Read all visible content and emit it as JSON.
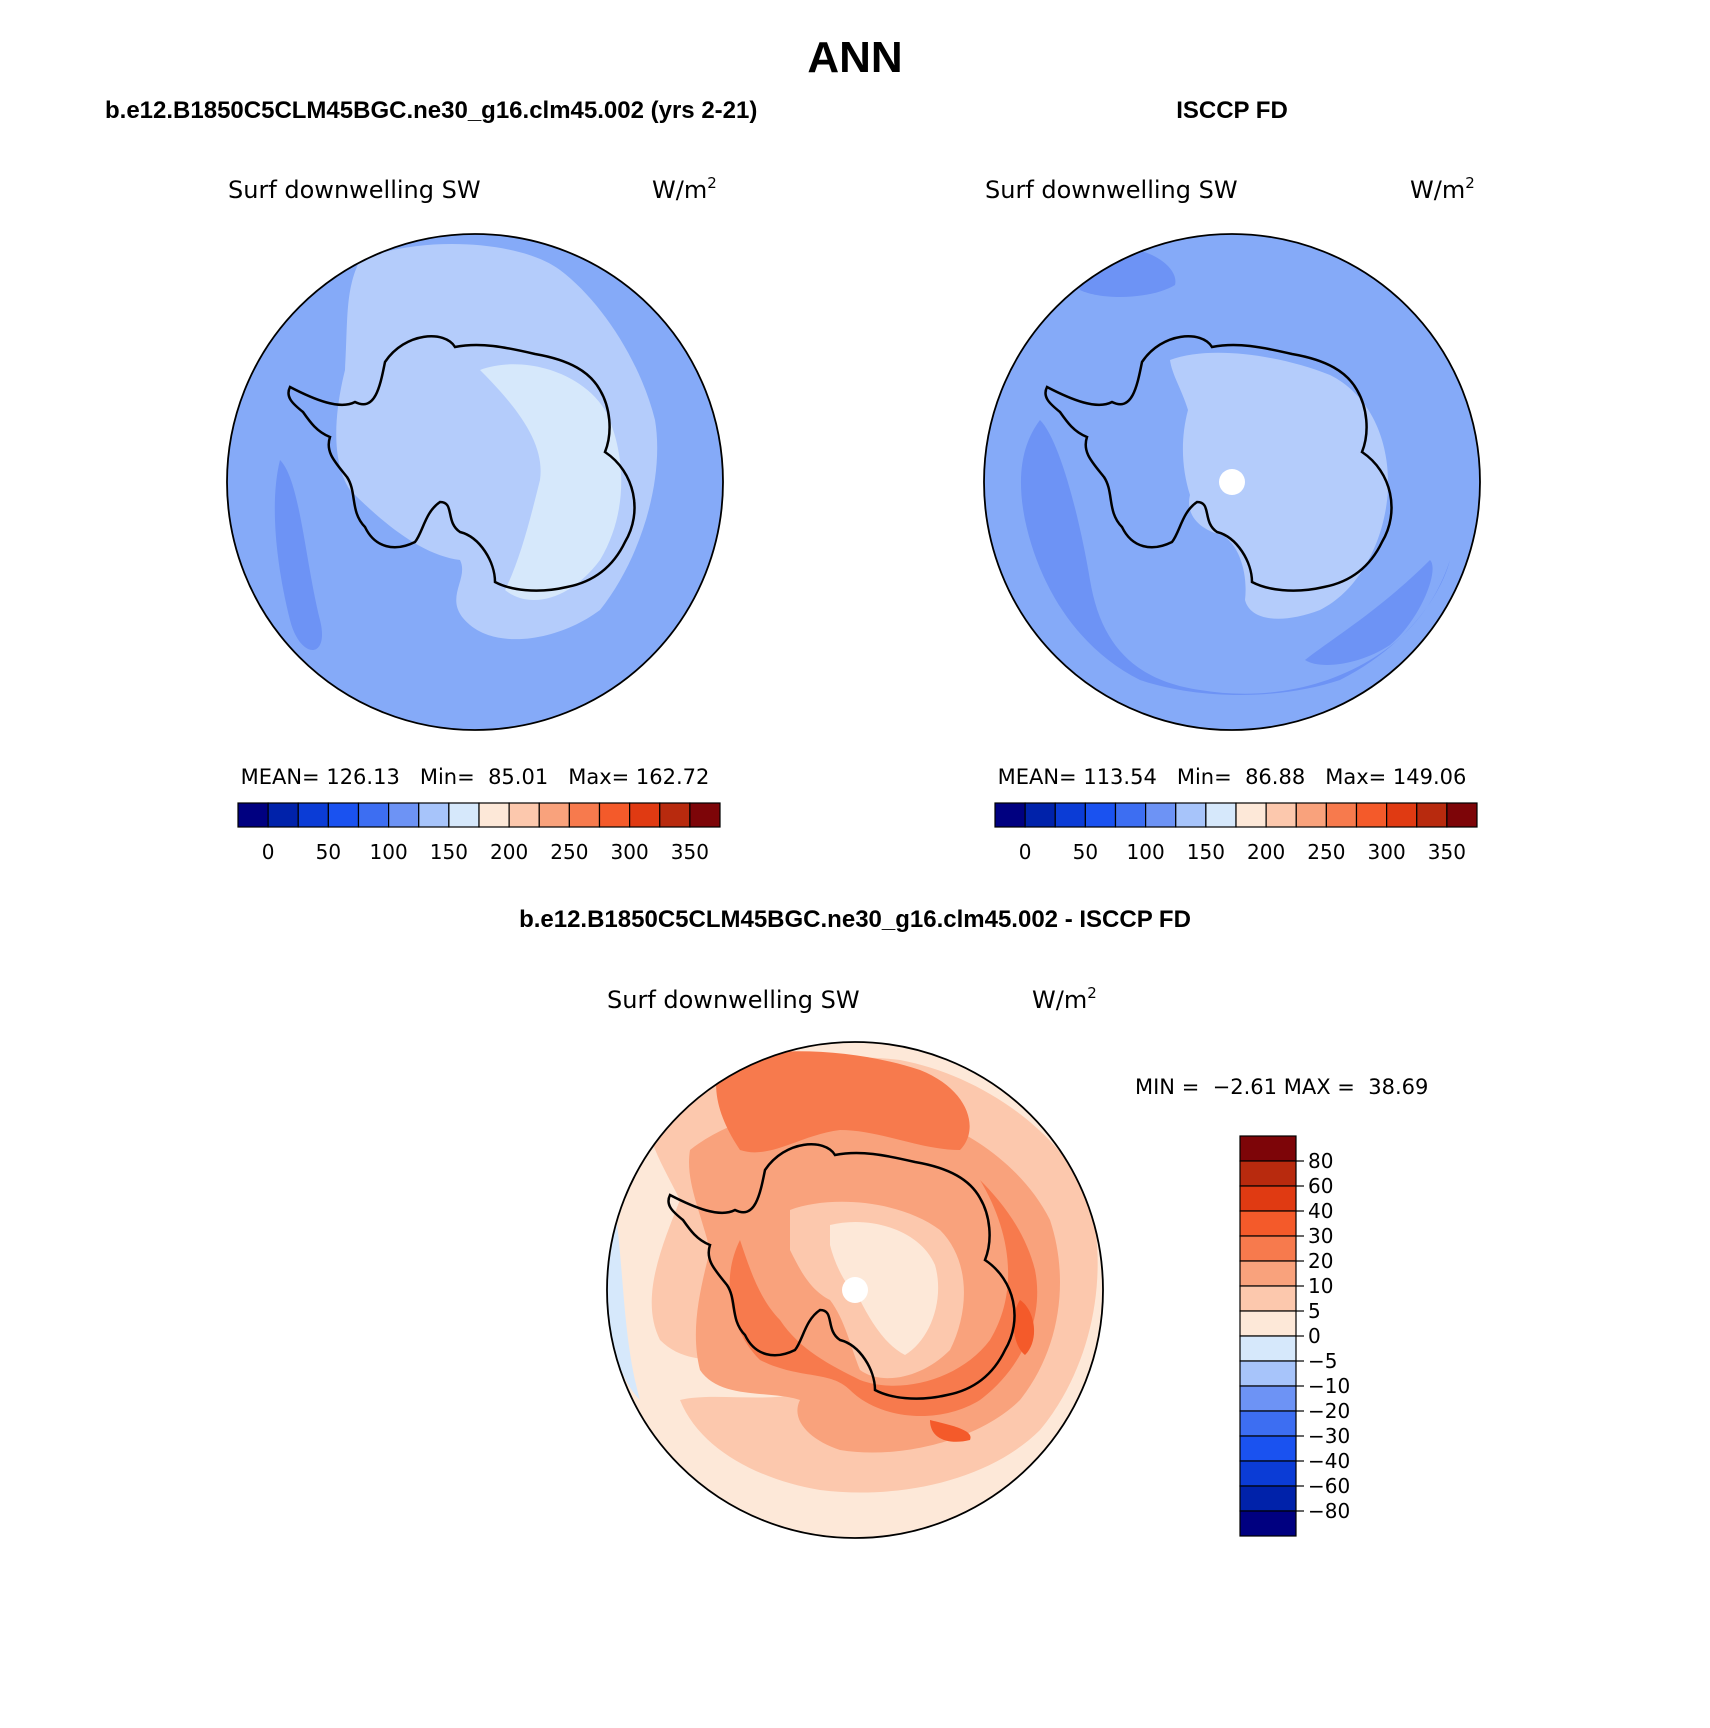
{
  "page_title": "ANN",
  "panels": [
    {
      "id": "model",
      "title": "b.e12.B1850C5CLM45BGC.ne30_g16.clm45.002 (yrs 2-21)",
      "variable": "Surf downwelling SW",
      "units": "W/m",
      "units_exp": "2",
      "stats": {
        "mean_label": "MEAN=",
        "mean": "126.13",
        "min_label": "Min=",
        "min": "85.01",
        "max_label": "Max=",
        "max": "162.72"
      }
    },
    {
      "id": "obs",
      "title": "ISCCP FD",
      "variable": "Surf downwelling SW",
      "units": "W/m",
      "units_exp": "2",
      "stats": {
        "mean_label": "MEAN=",
        "mean": "113.54",
        "min_label": "Min=",
        "min": "86.88",
        "max_label": "Max=",
        "max": "149.06"
      }
    }
  ],
  "diff_panel": {
    "title": "b.e12.B1850C5CLM45BGC.ne30_g16.clm45.002 - ISCCP FD",
    "variable": "Surf downwelling SW",
    "units": "W/m",
    "units_exp": "2",
    "stats": {
      "min_label": "MIN =",
      "min": "−2.61",
      "max_label": "MAX =",
      "max": "38.69"
    }
  },
  "chart_data": {
    "type": "heatmap",
    "projection": "south polar stereographic",
    "abs_colorbar": {
      "colors": [
        "#000080",
        "#0022aa",
        "#0b3cd6",
        "#1a52f0",
        "#3d6ef2",
        "#6d93f5",
        "#a7c4fa",
        "#d6e8fb",
        "#fde8d8",
        "#fcc8ad",
        "#f9a27c",
        "#f77a4d",
        "#f45a2a",
        "#e03a12",
        "#b82a0e",
        "#7d0508"
      ],
      "tick_labels": [
        "0",
        "50",
        "100",
        "150",
        "200",
        "250",
        "300",
        "350"
      ]
    },
    "diff_colorbar": {
      "colors": [
        "#000080",
        "#0022aa",
        "#0b3cd6",
        "#1a52f0",
        "#3d6ef2",
        "#6d93f5",
        "#a7c4fa",
        "#d6e8fb",
        "#fde8d8",
        "#fcc8ad",
        "#f9a27c",
        "#f77a4d",
        "#f45a2a",
        "#e03a12",
        "#b82a0e",
        "#7d0508"
      ],
      "tick_labels": [
        "80",
        "60",
        "40",
        "30",
        "20",
        "10",
        "5",
        "0",
        "−5",
        "−10",
        "−20",
        "−30",
        "−40",
        "−60",
        "−80"
      ]
    },
    "fields": {
      "model": {
        "ocean": "#85aaf8",
        "mid": "#b4ccfb",
        "ice": "#d6e8fb",
        "low": "#6d93f5"
      },
      "obs": {
        "ocean": "#85aaf8",
        "mid": "#b4ccfb",
        "low": "#6d93f5"
      },
      "diff": {
        "outer": "#fde8d8",
        "ring": "#fcc8ad",
        "high": "#f9a27c",
        "higher": "#f77a4d",
        "peak": "#f45a2a",
        "neg": "#d6e8fb"
      }
    }
  }
}
